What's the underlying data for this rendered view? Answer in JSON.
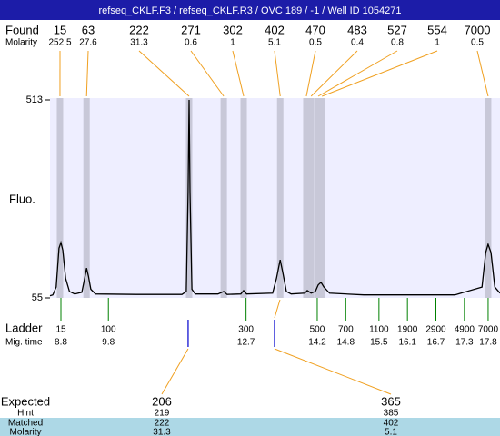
{
  "title": "refseq_CKLF.F3 / refseq_CKLF.R3 / OVC 189 / -1 / Well ID 1054271",
  "chart_data": {
    "type": "line",
    "ylabel": "Fluo.",
    "ylim": [
      55,
      513
    ],
    "yticks": [
      55,
      513
    ],
    "xlim": [
      8.57,
      18.05
    ],
    "color": "#000000",
    "background": "#eeeeff",
    "x": [
      8.57,
      8.63,
      8.7,
      8.76,
      8.8,
      8.84,
      8.9,
      8.98,
      9.09,
      9.24,
      9.3,
      9.34,
      9.38,
      9.43,
      9.53,
      10.39,
      11.35,
      11.44,
      11.48,
      11.5,
      11.52,
      11.56,
      11.63,
      12.11,
      12.23,
      12.3,
      12.59,
      12.65,
      12.71,
      13.26,
      13.34,
      13.42,
      13.48,
      13.55,
      13.65,
      13.94,
      13.99,
      14.07,
      14.16,
      14.22,
      14.28,
      14.34,
      14.46,
      15.18,
      17.1,
      17.67,
      17.75,
      17.8,
      17.86,
      17.94,
      18.05
    ],
    "values": [
      60,
      62,
      80,
      170,
      183,
      165,
      100,
      70,
      64,
      68,
      100,
      124,
      105,
      75,
      64,
      63,
      63,
      70,
      300,
      513,
      300,
      75,
      64,
      64,
      70,
      63,
      64,
      72,
      64,
      66,
      100,
      143,
      110,
      70,
      64,
      66,
      72,
      66,
      70,
      85,
      91,
      80,
      66,
      62,
      62,
      80,
      160,
      179,
      160,
      80,
      66
    ],
    "found": {
      "label": "Found",
      "molarity_label": "Molarity",
      "color": "#c8c8d8",
      "sizes": [
        15,
        63,
        222,
        271,
        302,
        402,
        470,
        483,
        527,
        554,
        7000
      ],
      "molarity": [
        252.5,
        27.6,
        31.3,
        0.6,
        1,
        5.1,
        0.5,
        0.4,
        0.8,
        1,
        0.5
      ],
      "x": [
        8.78,
        9.34,
        11.5,
        12.23,
        12.65,
        13.42,
        13.97,
        14.07,
        14.22,
        14.3,
        17.8
      ]
    },
    "ladder": {
      "label": "Ladder",
      "time_label": "Mig. time",
      "color": "#008000",
      "sizes": [
        15,
        100,
        300,
        500,
        700,
        1100,
        1900,
        2900,
        4900,
        7000
      ],
      "x": [
        8.8,
        9.8,
        12.7,
        14.2,
        14.8,
        15.5,
        16.1,
        16.7,
        17.3,
        17.8
      ]
    },
    "expected": {
      "label": "Expected",
      "hint_label": "Hint",
      "matched_label": "Matched",
      "molarity_label": "Molarity",
      "color": "#0000cc",
      "sizes": [
        206,
        365
      ],
      "hint": [
        219,
        385
      ],
      "matched": [
        222,
        402
      ],
      "molarity": [
        31.3,
        5.1
      ],
      "x": [
        11.48,
        13.3
      ]
    }
  }
}
